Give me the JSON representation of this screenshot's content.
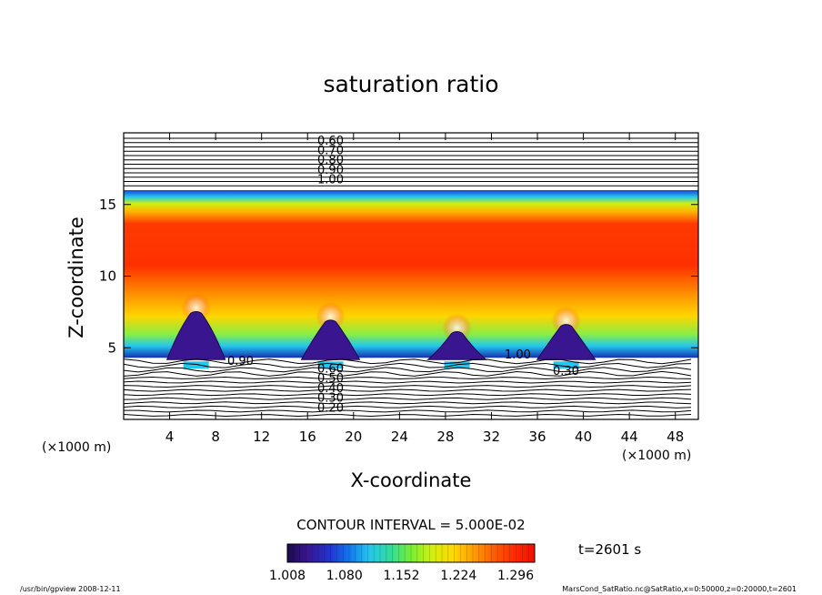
{
  "chart_data": {
    "type": "heatmap",
    "title": "saturation ratio",
    "xlabel": "X-coordinate",
    "ylabel": "Z-coordinate",
    "x_unit_label": "(×1000 m)",
    "y_unit_label": "(×1000 m)",
    "xlim": [
      0,
      50
    ],
    "ylim": [
      0,
      20
    ],
    "x_ticks": [
      4,
      8,
      12,
      16,
      20,
      24,
      28,
      32,
      36,
      40,
      44,
      48
    ],
    "y_ticks": [
      5,
      10,
      15
    ],
    "contour_interval_text": "CONTOUR INTERVAL = 5.000E-02",
    "time_label": "t=2601 s",
    "colorbar": {
      "min": 1.008,
      "max": 1.32,
      "tick_labels": [
        "1.008",
        "1.080",
        "1.152",
        "1.224",
        "1.296"
      ]
    },
    "upper_contour_labels": [
      "0.60",
      "0.70",
      "0.80",
      "0.90",
      "1.00"
    ],
    "lower_contour_labels": [
      "0.60",
      "0.50",
      "0.40",
      "0.30",
      "0.20"
    ],
    "inline_contour_labels": [
      "0.90",
      "1.00",
      "0.30"
    ],
    "top_saturation_boundary_z": 16,
    "bottom_saturation_boundary_z": 4.3,
    "max_ratio_band": {
      "z_min": 10.5,
      "z_max": 15
    },
    "convective_cells": [
      {
        "x": 6.3,
        "top_z": 7.4
      },
      {
        "x": 18.0,
        "top_z": 6.8
      },
      {
        "x": 29.0,
        "top_z": 6.0
      },
      {
        "x": 38.5,
        "top_z": 6.5
      }
    ],
    "colors": {
      "saturation_palette": [
        "#1a0a4a",
        "#3a1590",
        "#2233cc",
        "#1177ee",
        "#22c6ee",
        "#33dd99",
        "#77ee33",
        "#cff00f",
        "#ffd800",
        "#ffa000",
        "#ff6000",
        "#ff2a00",
        "#ee1100"
      ]
    }
  },
  "footer": {
    "left": "/usr/bin/gpview   2008-12-11",
    "right": "MarsCond_SatRatio.nc@SatRatio,x=0:50000,z=0:20000,t=2601"
  }
}
